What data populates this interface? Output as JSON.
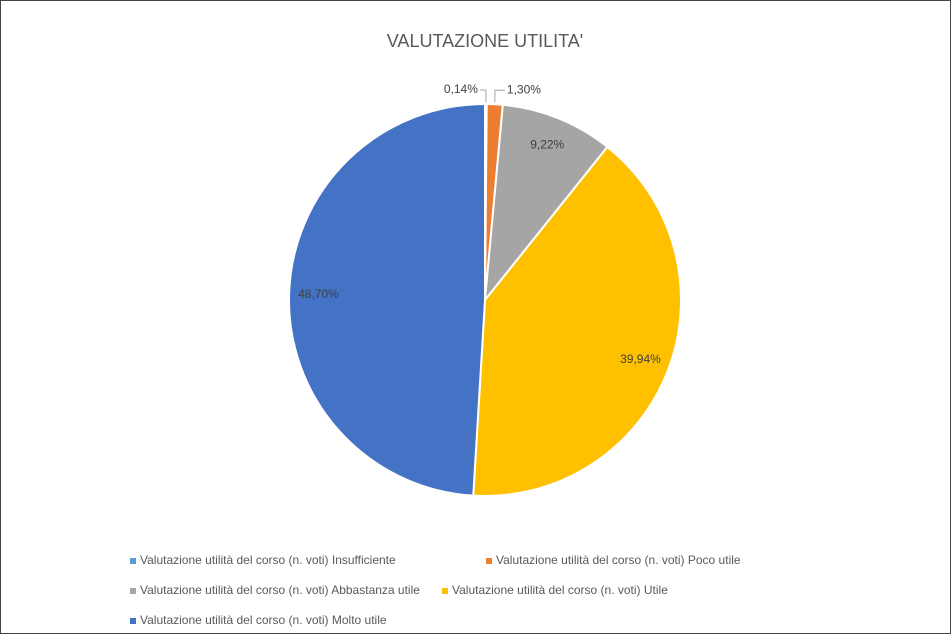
{
  "chart_data": {
    "type": "pie",
    "title": "VALUTAZIONE UTILITA'",
    "categories": [
      "Valutazione utilità del corso (n. voti) Insufficiente",
      "Valutazione utilità del corso (n. voti) Poco utile",
      "Valutazione utilità del corso (n. voti) Abbastanza utile",
      "Valutazione utilità del corso (n. voti) Utile",
      "Valutazione utilità del corso (n. voti) Molto utile"
    ],
    "values": [
      0.14,
      1.3,
      9.22,
      39.94,
      48.7
    ],
    "value_labels": [
      "0,14%",
      "1,30%",
      "9,22%",
      "39,94%",
      "48,70%"
    ],
    "colors": [
      "#5b9bd5",
      "#ed7d31",
      "#a5a5a5",
      "#ffc000",
      "#4472c4"
    ],
    "legend": "bottom"
  }
}
